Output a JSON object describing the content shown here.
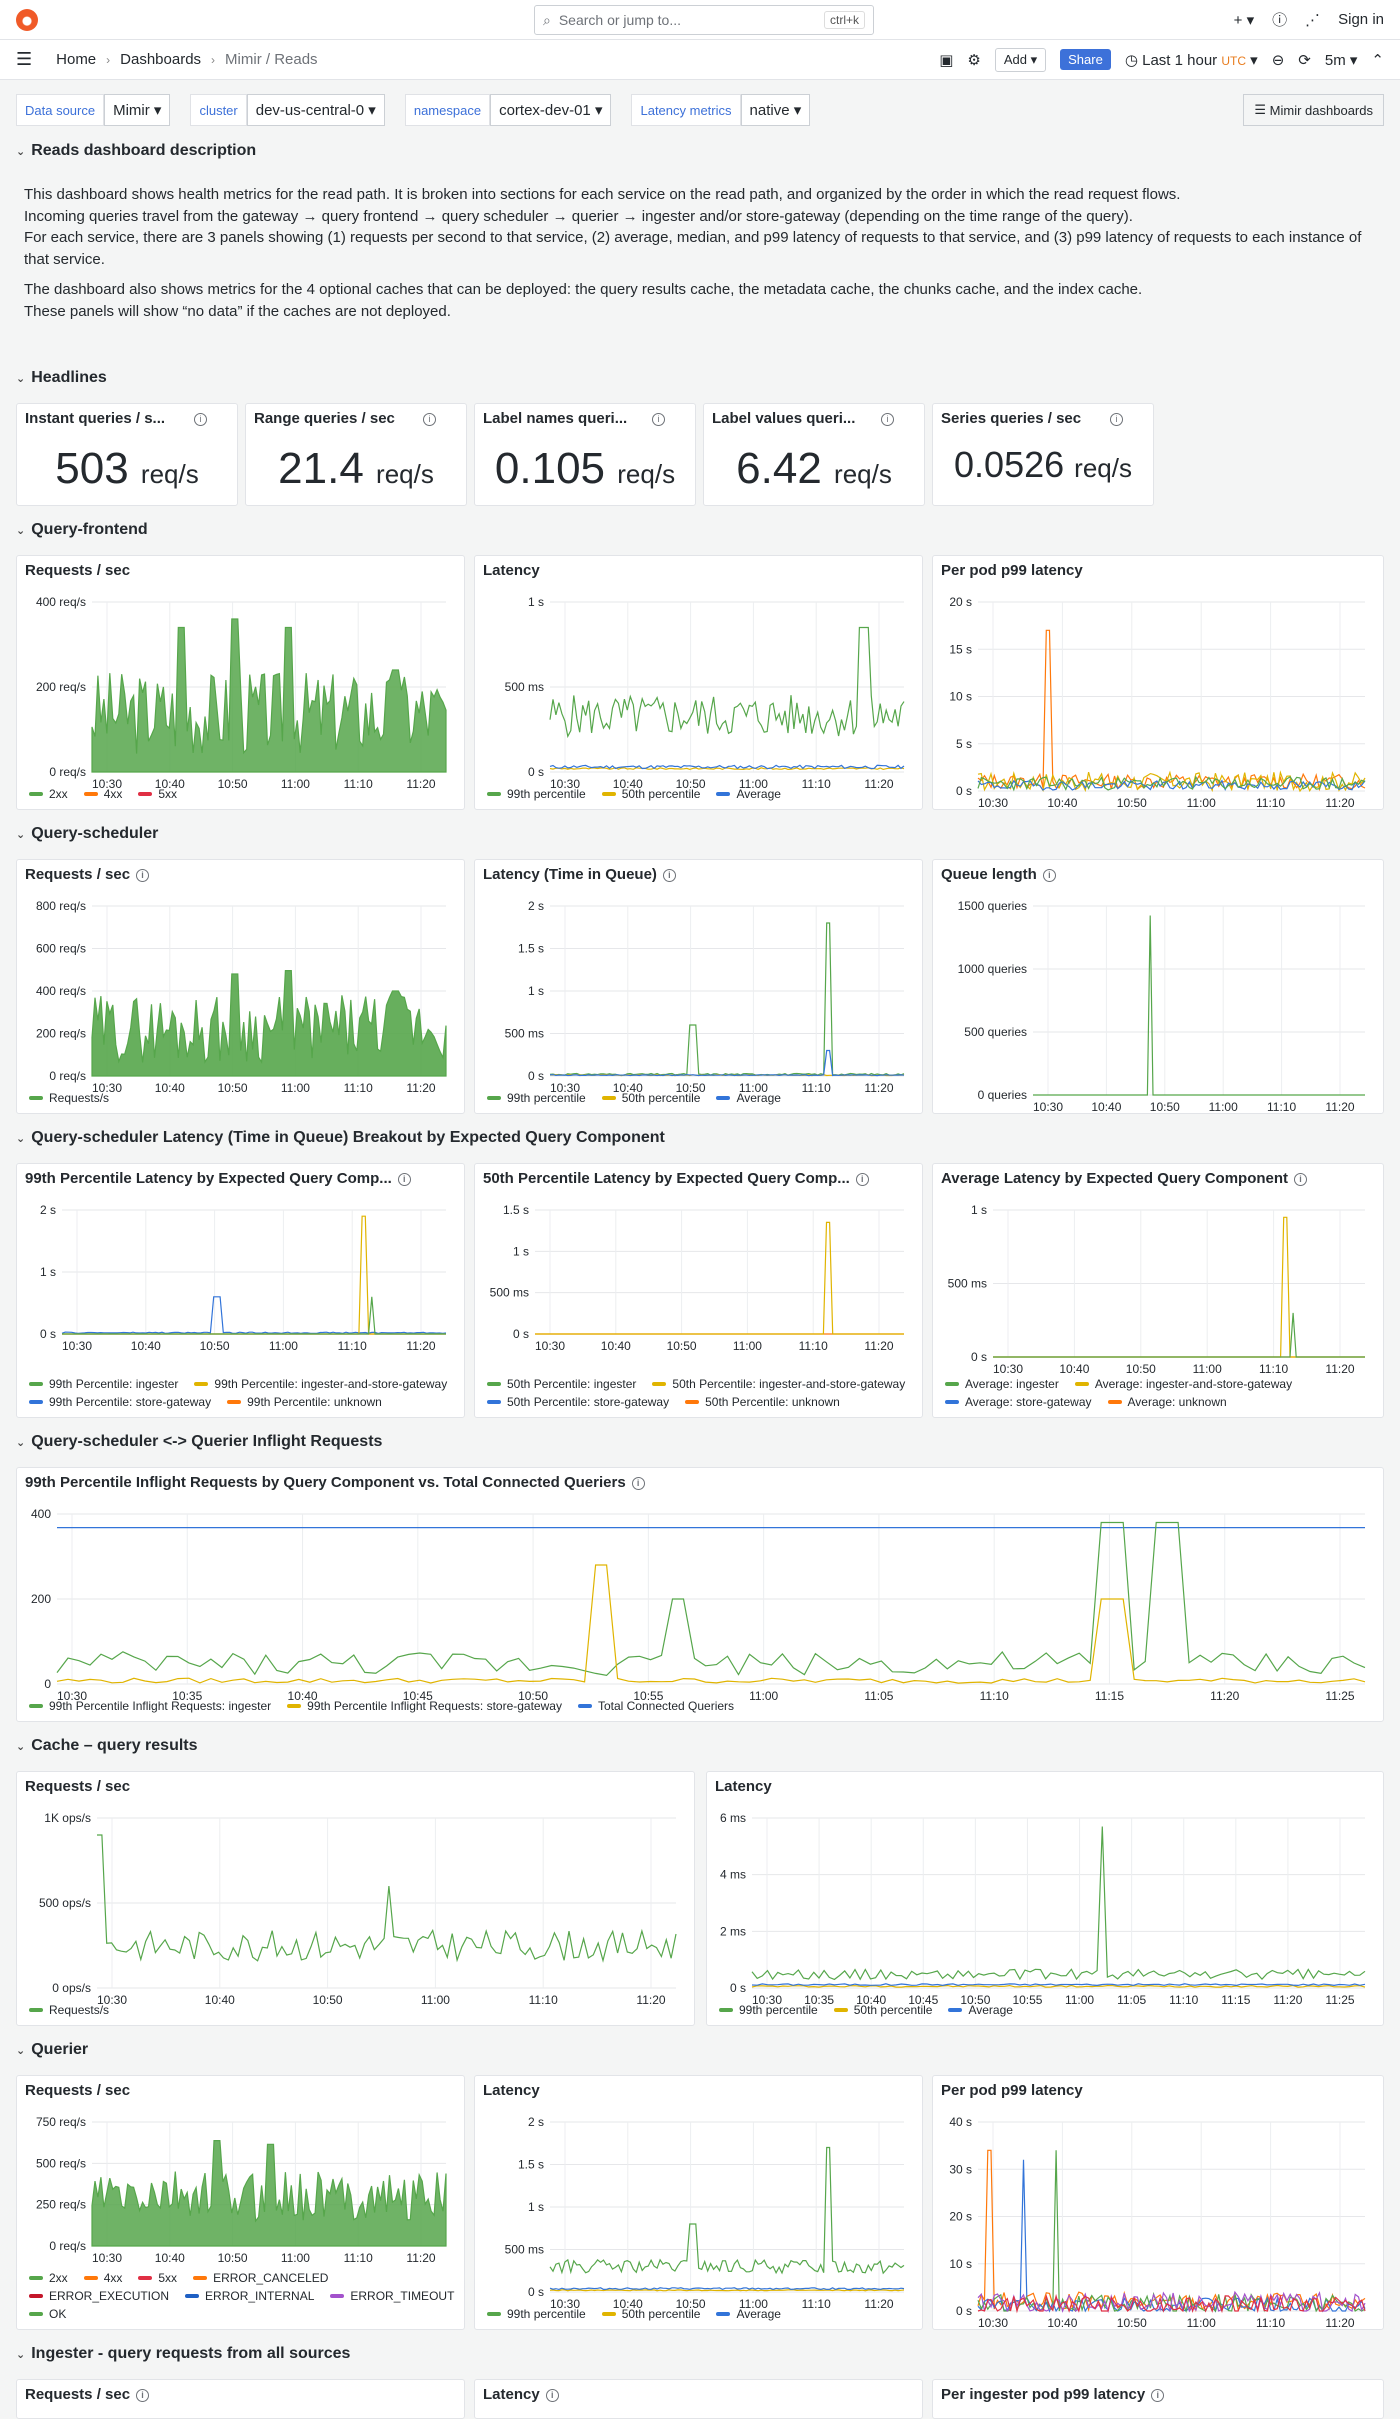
{
  "topbar": {
    "search_placeholder": "Search or jump to...",
    "search_shortcut": "ctrl+k",
    "plus": "+ ▾",
    "signin": "Sign in"
  },
  "breadcrumb": [
    "Home",
    "Dashboards",
    "Mimir / Reads"
  ],
  "toolbar": {
    "add": "Add ▾",
    "share": "Share",
    "timerange": "Last 1 hour",
    "tz": "UTC",
    "refresh": "5m"
  },
  "variables": [
    {
      "label": "Data source",
      "value": "Mimir"
    },
    {
      "label": "cluster",
      "value": "dev-us-central-0"
    },
    {
      "label": "namespace",
      "value": "cortex-dev-01"
    },
    {
      "label": "Latency metrics",
      "value": "native"
    }
  ],
  "mimir_button": "Mimir dashboards",
  "rows": {
    "desc": "Reads dashboard description",
    "headlines": "Headlines",
    "qf": "Query-frontend",
    "qs": "Query-scheduler",
    "qsl": "Query-scheduler Latency (Time in Queue) Breakout by Expected Query Component",
    "inflight": "Query-scheduler <-> Querier Inflight Requests",
    "cache": "Cache – query results",
    "querier": "Querier",
    "ingester": "Ingester - query requests from all sources"
  },
  "description": [
    "This dashboard shows health metrics for the read path. It is broken into sections for each service on the read path, and organized by the order in which the read request flows.",
    "Incoming queries travel from the gateway → query frontend → query scheduler → querier → ingester and/or store-gateway (depending on the time range of the query).",
    "For each service, there are 3 panels showing (1) requests per second to that service, (2) average, median, and p99 latency of requests to that service, and (3) p99 latency of requests to each instance of that service.",
    "",
    "The dashboard also shows metrics for the 4 optional caches that can be deployed: the query results cache, the metadata cache, the chunks cache, and the index cache.",
    "These panels will show “no data” if the caches are not deployed."
  ],
  "stats": [
    {
      "title": "Instant queries / s...",
      "value": "503",
      "unit": "req/s"
    },
    {
      "title": "Range queries / sec",
      "value": "21.4",
      "unit": "req/s"
    },
    {
      "title": "Label names queri...",
      "value": "0.105",
      "unit": "req/s"
    },
    {
      "title": "Label values queri...",
      "value": "6.42",
      "unit": "req/s"
    },
    {
      "title": "Series queries / sec",
      "value": "0.0526",
      "unit": "req/s"
    }
  ],
  "colors": {
    "green": "#56a64b",
    "yellow": "#e0b400",
    "blue": "#3274d9",
    "orange": "#ff780a",
    "red": "#e02f44",
    "purple": "#a352cc",
    "darkred": "#c4162a",
    "darkblue": "#1f60c4"
  },
  "panels": {
    "qf_rps": {
      "title": "Requests / sec",
      "ticks": [
        "400 req/s",
        "200 req/s",
        "0 req/s"
      ],
      "legend": [
        "2xx",
        "4xx",
        "5xx"
      ]
    },
    "qf_lat": {
      "title": "Latency",
      "ticks": [
        "1 s",
        "500 ms",
        "0 s"
      ],
      "legend": [
        "99th percentile",
        "50th percentile",
        "Average"
      ]
    },
    "qf_pod": {
      "title": "Per pod p99 latency",
      "ticks": [
        "20 s",
        "15 s",
        "10 s",
        "5 s",
        "0 s"
      ]
    },
    "qs_rps": {
      "title": "Requests / sec",
      "ticks": [
        "800 req/s",
        "600 req/s",
        "400 req/s",
        "200 req/s",
        "0 req/s"
      ],
      "legend": [
        "Requests/s"
      ]
    },
    "qs_lat": {
      "title": "Latency (Time in Queue)",
      "ticks": [
        "2 s",
        "1.5 s",
        "1 s",
        "500 ms",
        "0 s"
      ],
      "legend": [
        "99th percentile",
        "50th percentile",
        "Average"
      ]
    },
    "qs_q": {
      "title": "Queue length",
      "ticks": [
        "1500 queries",
        "1000 queries",
        "500 queries",
        "0 queries"
      ]
    },
    "p99c": {
      "title": "99th Percentile Latency by Expected Query Comp...",
      "ticks": [
        "2 s",
        "1 s",
        "0 s"
      ],
      "legend": [
        "99th Percentile: ingester",
        "99th Percentile: ingester-and-store-gateway",
        "99th Percentile: store-gateway",
        "99th Percentile: unknown"
      ]
    },
    "p50c": {
      "title": "50th Percentile Latency by Expected Query Comp...",
      "ticks": [
        "1.5 s",
        "1 s",
        "500 ms",
        "0 s"
      ],
      "legend": [
        "50th Percentile: ingester",
        "50th Percentile: ingester-and-store-gateway",
        "50th Percentile: store-gateway",
        "50th Percentile: unknown"
      ]
    },
    "avgc": {
      "title": "Average Latency by Expected Query Component",
      "ticks": [
        "1 s",
        "500 ms",
        "0 s"
      ],
      "legend": [
        "Average: ingester",
        "Average: ingester-and-store-gateway",
        "Average: store-gateway",
        "Average: unknown"
      ]
    },
    "inflight": {
      "title": "99th Percentile Inflight Requests by Query Component vs. Total Connected Queriers",
      "ticks": [
        "400",
        "200",
        "0"
      ],
      "legend": [
        "99th Percentile Inflight Requests: ingester",
        "99th Percentile Inflight Requests: store-gateway",
        "Total Connected Queriers"
      ]
    },
    "c_rps": {
      "title": "Requests / sec",
      "ticks": [
        "1K ops/s",
        "500 ops/s",
        "0 ops/s"
      ],
      "legend": [
        "Requests/s"
      ]
    },
    "c_lat": {
      "title": "Latency",
      "ticks": [
        "6 ms",
        "4 ms",
        "2 ms",
        "0 s"
      ],
      "legend": [
        "99th percentile",
        "50th percentile",
        "Average"
      ]
    },
    "q_rps": {
      "title": "Requests / sec",
      "ticks": [
        "750 req/s",
        "500 req/s",
        "250 req/s",
        "0 req/s"
      ],
      "legend": [
        "2xx",
        "4xx",
        "5xx",
        "ERROR_CANCELED",
        "ERROR_EXECUTION",
        "ERROR_INTERNAL",
        "ERROR_TIMEOUT",
        "OK"
      ]
    },
    "q_lat": {
      "title": "Latency",
      "ticks": [
        "2 s",
        "1.5 s",
        "1 s",
        "500 ms",
        "0 s"
      ],
      "legend": [
        "99th percentile",
        "50th percentile",
        "Average"
      ]
    },
    "q_pod": {
      "title": "Per pod p99 latency",
      "ticks": [
        "40 s",
        "30 s",
        "20 s",
        "10 s",
        "0 s"
      ]
    },
    "i_rps": {
      "title": "Requests / sec"
    },
    "i_lat": {
      "title": "Latency"
    },
    "i_pod": {
      "title": "Per ingester pod p99 latency"
    }
  },
  "xticks_short": [
    "10:30",
    "10:40",
    "10:50",
    "11:00",
    "11:10",
    "11:20"
  ],
  "xticks_inflight": [
    "10:30",
    "10:35",
    "10:40",
    "10:45",
    "10:50",
    "10:55",
    "11:00",
    "11:05",
    "11:10",
    "11:15",
    "11:20",
    "11:25"
  ],
  "xticks_cache_lat": [
    "10:30",
    "10:35",
    "10:40",
    "10:45",
    "10:50",
    "10:55",
    "11:00",
    "11:05",
    "11:10",
    "11:15",
    "11:20",
    "11:25"
  ]
}
